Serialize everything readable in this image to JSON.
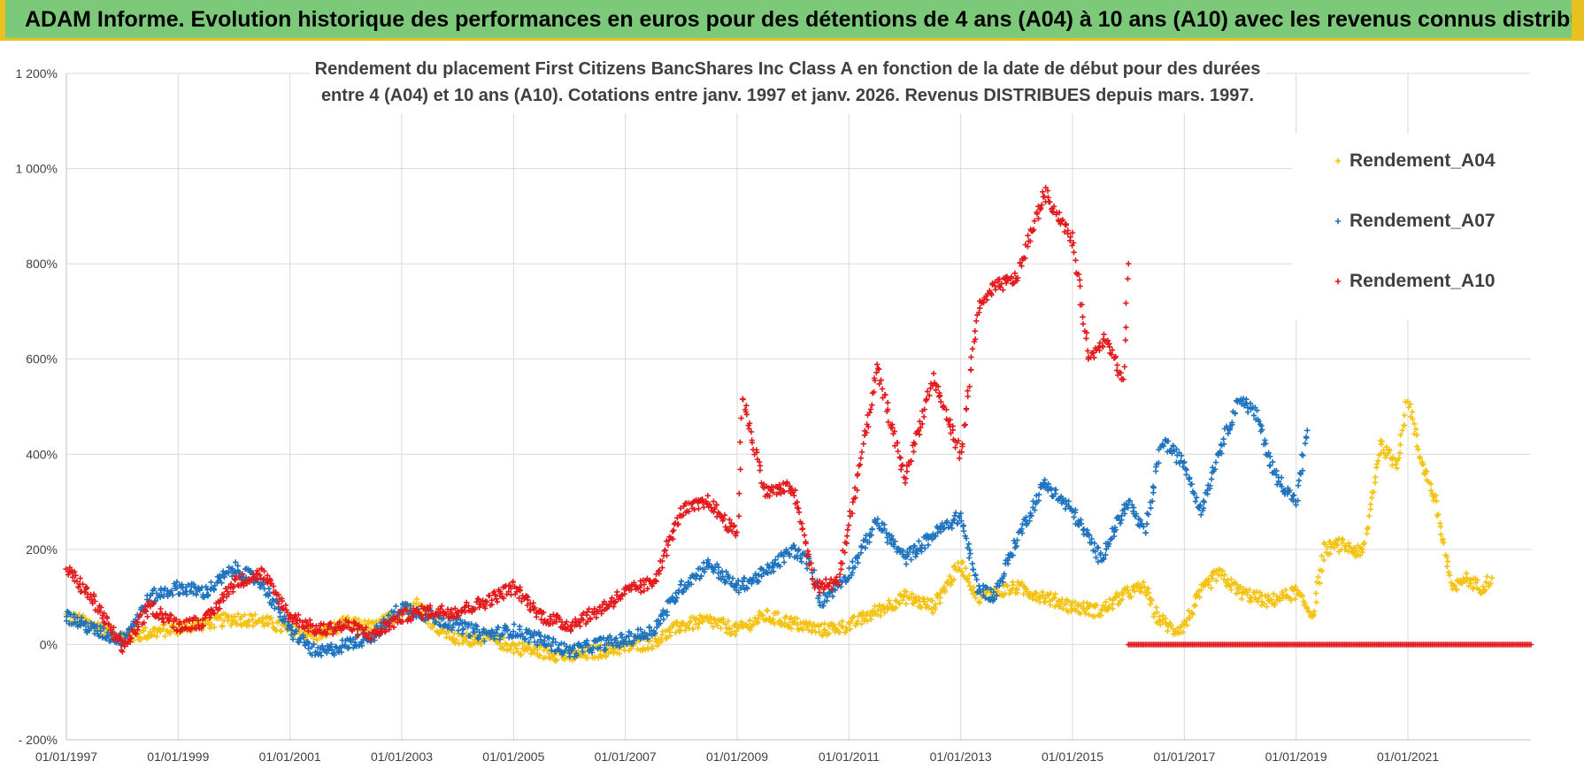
{
  "header": {
    "title": "ADAM Informe. Evolution historique des performances en euros pour des détentions de 4 ans (A04) à 10 ans (A10) avec les revenus connus distribués"
  },
  "chart_data": {
    "type": "scatter",
    "title_lines": [
      "Rendement du placement First Citizens BancShares Inc Class A en fonction de la date de début pour des durées",
      "entre 4 (A04) et 10 ans (A10).  Cotations entre janv. 1997 et janv. 2026. Revenus DISTRIBUES depuis mars. 1997."
    ],
    "xlabel": "",
    "ylabel": "",
    "x_range": [
      1997.0,
      2023.2
    ],
    "ylim": [
      -200,
      1200
    ],
    "y_ticks": [
      -200,
      0,
      200,
      400,
      600,
      800,
      1000,
      1200
    ],
    "y_tick_labels": [
      "- 200%",
      "0%",
      "200%",
      "400%",
      "600%",
      "800%",
      "1 000%",
      "1 200%"
    ],
    "x_ticks": [
      1997,
      1999,
      2001,
      2003,
      2005,
      2007,
      2009,
      2011,
      2013,
      2015,
      2017,
      2019,
      2021
    ],
    "x_tick_labels": [
      "01/01/1997",
      "01/01/1999",
      "01/01/2001",
      "01/01/2003",
      "01/01/2005",
      "01/01/2007",
      "01/01/2009",
      "01/01/2011",
      "01/01/2013",
      "01/01/2015",
      "01/01/2017",
      "01/01/2019",
      "01/01/2021"
    ],
    "grid": true,
    "legend_position": "right",
    "series": [
      {
        "name": "Rendement_A04",
        "color": "#f5c211",
        "points": [
          [
            1997.0,
            60
          ],
          [
            1997.5,
            40
          ],
          [
            1998.0,
            15
          ],
          [
            1998.5,
            25
          ],
          [
            1999.0,
            35
          ],
          [
            1999.5,
            45
          ],
          [
            2000.0,
            55
          ],
          [
            2000.5,
            50
          ],
          [
            2001.0,
            30
          ],
          [
            2001.5,
            20
          ],
          [
            2002.0,
            45
          ],
          [
            2002.5,
            35
          ],
          [
            2003.0,
            70
          ],
          [
            2003.3,
            85
          ],
          [
            2003.6,
            40
          ],
          [
            2004.0,
            10
          ],
          [
            2004.5,
            15
          ],
          [
            2005.0,
            -5
          ],
          [
            2005.5,
            -15
          ],
          [
            2006.0,
            -25
          ],
          [
            2006.5,
            -15
          ],
          [
            2007.0,
            -5
          ],
          [
            2007.5,
            5
          ],
          [
            2008.0,
            40
          ],
          [
            2008.5,
            50
          ],
          [
            2009.0,
            30
          ],
          [
            2009.5,
            60
          ],
          [
            2010.0,
            45
          ],
          [
            2010.5,
            30
          ],
          [
            2011.0,
            40
          ],
          [
            2011.5,
            70
          ],
          [
            2012.0,
            100
          ],
          [
            2012.5,
            80
          ],
          [
            2013.0,
            170
          ],
          [
            2013.3,
            100
          ],
          [
            2013.6,
            110
          ],
          [
            2014.0,
            120
          ],
          [
            2014.5,
            100
          ],
          [
            2015.0,
            80
          ],
          [
            2015.5,
            70
          ],
          [
            2016.0,
            110
          ],
          [
            2016.3,
            120
          ],
          [
            2016.5,
            60
          ],
          [
            2016.8,
            30
          ],
          [
            2017.0,
            40
          ],
          [
            2017.3,
            110
          ],
          [
            2017.6,
            150
          ],
          [
            2018.0,
            110
          ],
          [
            2018.5,
            90
          ],
          [
            2019.0,
            110
          ],
          [
            2019.3,
            60
          ],
          [
            2019.5,
            200
          ],
          [
            2019.8,
            210
          ],
          [
            2020.2,
            190
          ],
          [
            2020.5,
            420
          ],
          [
            2020.8,
            380
          ],
          [
            2021.0,
            520
          ],
          [
            2021.2,
            400
          ],
          [
            2021.5,
            300
          ],
          [
            2021.8,
            110
          ],
          [
            2022.0,
            140
          ],
          [
            2022.3,
            120
          ],
          [
            2022.5,
            140
          ]
        ]
      },
      {
        "name": "Rendement_A07",
        "color": "#1e73be",
        "points": [
          [
            1997.0,
            60
          ],
          [
            1997.5,
            30
          ],
          [
            1998.0,
            10
          ],
          [
            1998.5,
            100
          ],
          [
            1999.0,
            120
          ],
          [
            1999.5,
            110
          ],
          [
            2000.0,
            160
          ],
          [
            2000.5,
            130
          ],
          [
            2001.0,
            30
          ],
          [
            2001.5,
            -20
          ],
          [
            2002.0,
            0
          ],
          [
            2002.5,
            20
          ],
          [
            2003.0,
            80
          ],
          [
            2003.5,
            60
          ],
          [
            2004.0,
            40
          ],
          [
            2004.5,
            20
          ],
          [
            2005.0,
            30
          ],
          [
            2005.5,
            10
          ],
          [
            2006.0,
            -15
          ],
          [
            2006.5,
            0
          ],
          [
            2007.0,
            10
          ],
          [
            2007.5,
            30
          ],
          [
            2008.0,
            120
          ],
          [
            2008.5,
            170
          ],
          [
            2009.0,
            120
          ],
          [
            2009.5,
            150
          ],
          [
            2010.0,
            200
          ],
          [
            2010.3,
            170
          ],
          [
            2010.5,
            90
          ],
          [
            2011.0,
            150
          ],
          [
            2011.5,
            260
          ],
          [
            2012.0,
            180
          ],
          [
            2012.5,
            230
          ],
          [
            2013.0,
            270
          ],
          [
            2013.3,
            120
          ],
          [
            2013.6,
            100
          ],
          [
            2014.0,
            220
          ],
          [
            2014.5,
            340
          ],
          [
            2015.0,
            280
          ],
          [
            2015.5,
            180
          ],
          [
            2016.0,
            300
          ],
          [
            2016.3,
            230
          ],
          [
            2016.6,
            430
          ],
          [
            2017.0,
            380
          ],
          [
            2017.3,
            280
          ],
          [
            2017.6,
            400
          ],
          [
            2018.0,
            520
          ],
          [
            2018.3,
            480
          ],
          [
            2018.6,
            360
          ],
          [
            2019.0,
            300
          ],
          [
            2019.2,
            450
          ]
        ]
      },
      {
        "name": "Rendement_A10",
        "color": "#e31a1c",
        "points": [
          [
            1997.0,
            160
          ],
          [
            1997.5,
            90
          ],
          [
            1998.0,
            -10
          ],
          [
            1998.5,
            80
          ],
          [
            1999.0,
            40
          ],
          [
            1999.5,
            50
          ],
          [
            2000.0,
            130
          ],
          [
            2000.5,
            150
          ],
          [
            2001.0,
            60
          ],
          [
            2001.5,
            30
          ],
          [
            2002.0,
            40
          ],
          [
            2002.5,
            20
          ],
          [
            2003.0,
            60
          ],
          [
            2003.5,
            70
          ],
          [
            2004.0,
            70
          ],
          [
            2004.5,
            90
          ],
          [
            2005.0,
            120
          ],
          [
            2005.5,
            60
          ],
          [
            2006.0,
            40
          ],
          [
            2006.5,
            70
          ],
          [
            2007.0,
            110
          ],
          [
            2007.5,
            130
          ],
          [
            2008.0,
            280
          ],
          [
            2008.5,
            300
          ],
          [
            2009.0,
            230
          ],
          [
            2009.1,
            520
          ],
          [
            2009.5,
            320
          ],
          [
            2010.0,
            330
          ],
          [
            2010.4,
            120
          ],
          [
            2010.8,
            130
          ],
          [
            2011.0,
            250
          ],
          [
            2011.5,
            580
          ],
          [
            2012.0,
            350
          ],
          [
            2012.5,
            560
          ],
          [
            2013.0,
            400
          ],
          [
            2013.3,
            700
          ],
          [
            2013.6,
            750
          ],
          [
            2014.0,
            770
          ],
          [
            2014.5,
            950
          ],
          [
            2015.0,
            850
          ],
          [
            2015.3,
            600
          ],
          [
            2015.6,
            650
          ],
          [
            2015.9,
            550
          ],
          [
            2016.0,
            800
          ]
        ]
      }
    ],
    "zero_tail": {
      "series": "Rendement_A10",
      "x_start": 2016.0,
      "x_end": 2023.2,
      "value": 0
    }
  }
}
